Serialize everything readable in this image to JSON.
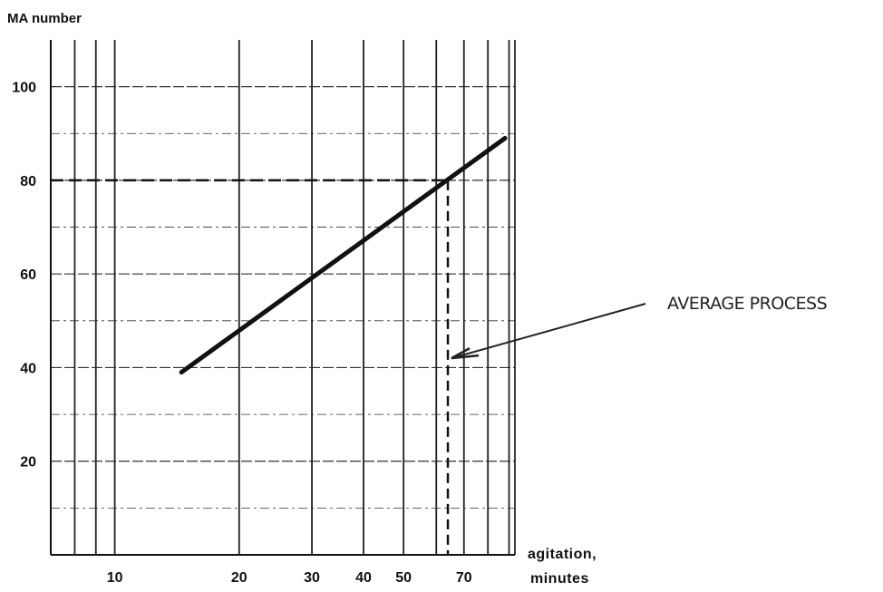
{
  "chart_data": {
    "type": "line",
    "title": "",
    "ylabel": "MA number",
    "xlabel_line1": "agitation,",
    "xlabel_line2": "minutes",
    "x_scale": "log",
    "xlim": [
      7,
      93
    ],
    "ylim": [
      0,
      110
    ],
    "x_ticks": [
      10,
      20,
      30,
      40,
      50,
      70
    ],
    "x_tick_labels": [
      "10",
      "20",
      "30",
      "40",
      "50",
      "70"
    ],
    "x_gridlines": [
      7,
      8,
      9,
      10,
      20,
      30,
      40,
      50,
      60,
      70,
      80,
      90
    ],
    "y_ticks": [
      20,
      40,
      60,
      80,
      100
    ],
    "y_tick_labels": [
      "20",
      "40",
      "60",
      "80",
      "100"
    ],
    "y_gridlines": [
      10,
      20,
      30,
      40,
      50,
      60,
      70,
      80,
      90,
      100
    ],
    "grid": true,
    "legend": "none",
    "series": [
      {
        "x": [
          14.5,
          88
        ],
        "y": [
          39,
          89
        ],
        "style": "solid",
        "color": "#111111"
      }
    ],
    "reference": {
      "x": 64,
      "y": 80,
      "style": "dashed"
    },
    "annotations": [
      {
        "text": "AVERAGE PROCESS",
        "points_to": {
          "x": 64,
          "y": 42
        }
      }
    ]
  }
}
